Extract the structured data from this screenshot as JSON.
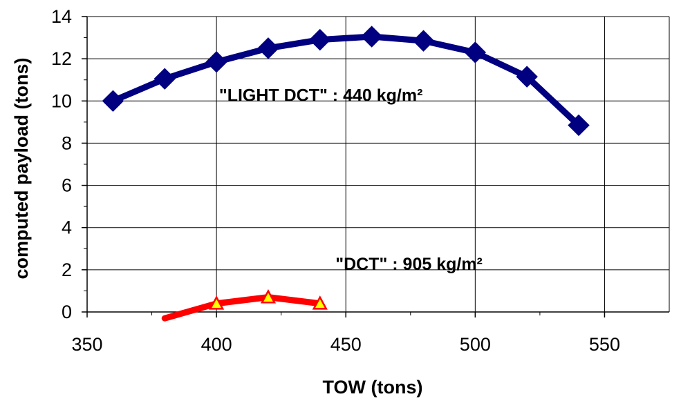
{
  "chart_data": {
    "type": "line",
    "title": "",
    "xlabel": "TOW (tons)",
    "ylabel": "computed payload (tons)",
    "xlim": [
      350,
      575
    ],
    "ylim": [
      0,
      14
    ],
    "x_ticks": [
      350,
      400,
      450,
      500,
      550
    ],
    "y_ticks": [
      0,
      2,
      4,
      6,
      8,
      10,
      12,
      14
    ],
    "grid": true,
    "legend": "none",
    "series": [
      {
        "color": "#000080",
        "marker": "diamond",
        "points": [
          {
            "x": 360,
            "y": 10.0
          },
          {
            "x": 380,
            "y": 11.05
          },
          {
            "x": 400,
            "y": 11.85
          },
          {
            "x": 420,
            "y": 12.5
          },
          {
            "x": 440,
            "y": 12.9
          },
          {
            "x": 460,
            "y": 13.05
          },
          {
            "x": 480,
            "y": 12.85
          },
          {
            "x": 500,
            "y": 12.3
          },
          {
            "x": 520,
            "y": 11.15
          },
          {
            "x": 540,
            "y": 8.85
          }
        ]
      },
      {
        "color": "#ff0000",
        "marker": "triangle",
        "marker_fill": "#ffff00",
        "points": [
          {
            "x": 380,
            "y": -0.3
          },
          {
            "x": 400,
            "y": 0.4
          },
          {
            "x": 420,
            "y": 0.7
          },
          {
            "x": 440,
            "y": 0.4
          }
        ],
        "marked_from": 1
      }
    ],
    "annotations": [
      {
        "text": "\"LIGHT DCT\" : 440 kg/m²",
        "x": 401,
        "y": 10.0
      },
      {
        "text": "\"DCT\" : 905 kg/m²",
        "x": 446,
        "y": 2.0
      }
    ]
  }
}
